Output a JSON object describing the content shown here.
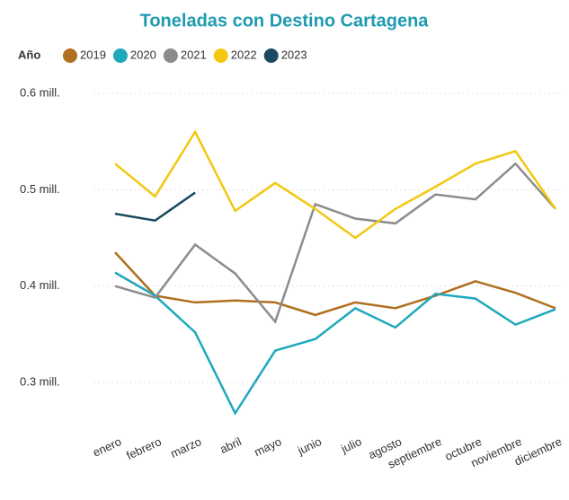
{
  "chart_data": {
    "type": "line",
    "title": "Toneladas con Destino Cartagena",
    "legend_title": "Año",
    "categories": [
      "enero",
      "febrero",
      "marzo",
      "abril",
      "mayo",
      "junio",
      "julio",
      "agosto",
      "septiembre",
      "octubre",
      "noviembre",
      "diciembre"
    ],
    "series": [
      {
        "name": "2019",
        "color": "#b07020",
        "values": [
          435000,
          390000,
          383000,
          385000,
          383000,
          370000,
          383000,
          377000,
          390000,
          405000,
          393000,
          377000
        ]
      },
      {
        "name": "2020",
        "color": "#1ea8bc",
        "values": [
          414000,
          390000,
          352000,
          268000,
          333000,
          345000,
          377000,
          357000,
          392000,
          387000,
          360000,
          376000
        ]
      },
      {
        "name": "2021",
        "color": "#8c8c8c",
        "values": [
          400000,
          388000,
          443000,
          413000,
          363000,
          485000,
          470000,
          465000,
          495000,
          490000,
          527000,
          480000
        ]
      },
      {
        "name": "2022",
        "color": "#f2c811",
        "values": [
          527000,
          493000,
          560000,
          478000,
          507000,
          480000,
          450000,
          480000,
          503000,
          527000,
          540000,
          480000
        ]
      },
      {
        "name": "2023",
        "color": "#1b4a63",
        "values": [
          475000,
          468000,
          497000,
          null,
          null,
          null,
          null,
          null,
          null,
          null,
          null,
          null
        ]
      }
    ],
    "ylim": [
      250000,
      620000
    ],
    "yticks": [
      {
        "value": 300000,
        "label": "0.3 mill."
      },
      {
        "value": 400000,
        "label": "0.4 mill."
      },
      {
        "value": 500000,
        "label": "0.5 mill."
      },
      {
        "value": 600000,
        "label": "0.6 mill."
      }
    ],
    "grid": true,
    "legend": "top-left"
  }
}
